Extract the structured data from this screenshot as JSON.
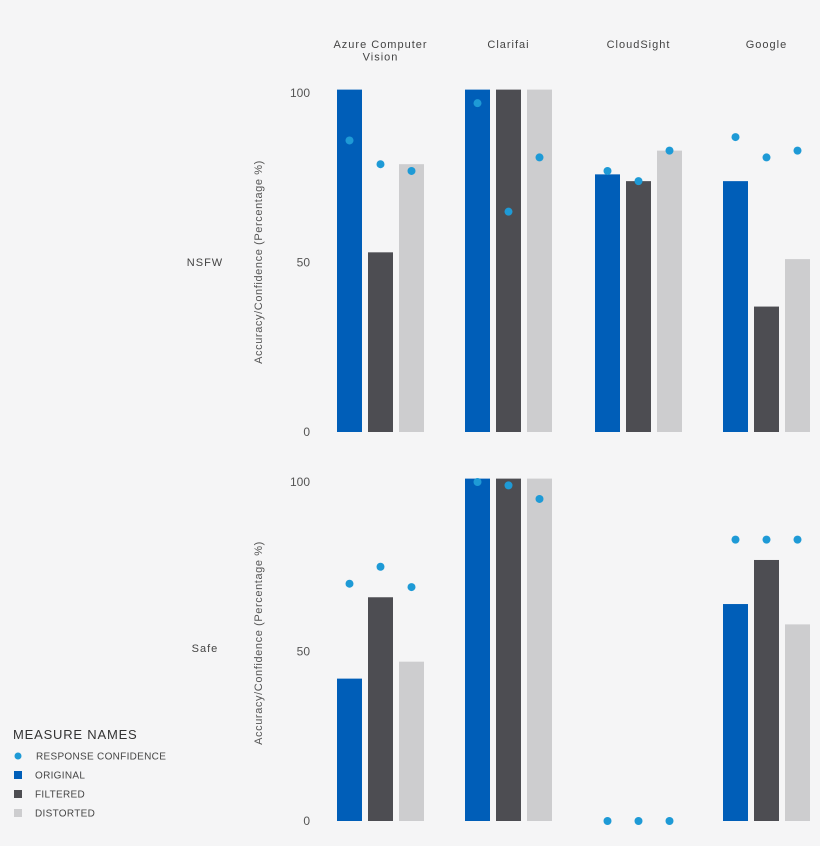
{
  "chart_data": {
    "type": "bar",
    "categories": [
      "Azure Computer Vision",
      "Clarifai",
      "CloudSight",
      "Google"
    ],
    "category_lines": [
      [
        "Azure Computer",
        "Vision"
      ],
      [
        "Clarifai"
      ],
      [
        "CloudSight"
      ],
      [
        "Google"
      ]
    ],
    "ylabel": "Accuracy/Confidence (Percentage %)",
    "ylim": [
      0,
      100
    ],
    "yticks": [
      0,
      50,
      100
    ],
    "legend": {
      "title": "MEASURE NAMES",
      "placement": "bottom-left",
      "items": [
        {
          "key": "confidence",
          "label": "RESPONSE CONFIDENCE",
          "marker": "dot"
        },
        {
          "key": "original",
          "label": "ORIGINAL",
          "marker": "square"
        },
        {
          "key": "filtered",
          "label": "FILTERED",
          "marker": "square"
        },
        {
          "key": "distorted",
          "label": "DISTORTED",
          "marker": "square"
        }
      ]
    },
    "colors": {
      "original": "#005eb8",
      "filtered": "#4d4d52",
      "distorted": "#cdcdcf",
      "confidence": "#1e9ad6"
    },
    "panels": [
      {
        "row_label": "NSFW",
        "series": [
          {
            "name": "ORIGINAL",
            "key": "original",
            "values": [
              101,
              101,
              76,
              74
            ]
          },
          {
            "name": "FILTERED",
            "key": "filtered",
            "values": [
              53,
              101,
              74,
              37
            ]
          },
          {
            "name": "DISTORTED",
            "key": "distorted",
            "values": [
              79,
              101,
              83,
              51
            ]
          }
        ],
        "confidence": [
          [
            86,
            79,
            77
          ],
          [
            97,
            65,
            81
          ],
          [
            77,
            74,
            83
          ],
          [
            87,
            81,
            83
          ]
        ]
      },
      {
        "row_label": "Safe",
        "series": [
          {
            "name": "ORIGINAL",
            "key": "original",
            "values": [
              42,
              101,
              0,
              64
            ]
          },
          {
            "name": "FILTERED",
            "key": "filtered",
            "values": [
              66,
              101,
              0,
              77
            ]
          },
          {
            "name": "DISTORTED",
            "key": "distorted",
            "values": [
              47,
              101,
              0,
              58
            ]
          }
        ],
        "confidence": [
          [
            70,
            75,
            69
          ],
          [
            100,
            99,
            95
          ],
          [
            0,
            0,
            0
          ],
          [
            83,
            83,
            83
          ]
        ]
      }
    ]
  }
}
